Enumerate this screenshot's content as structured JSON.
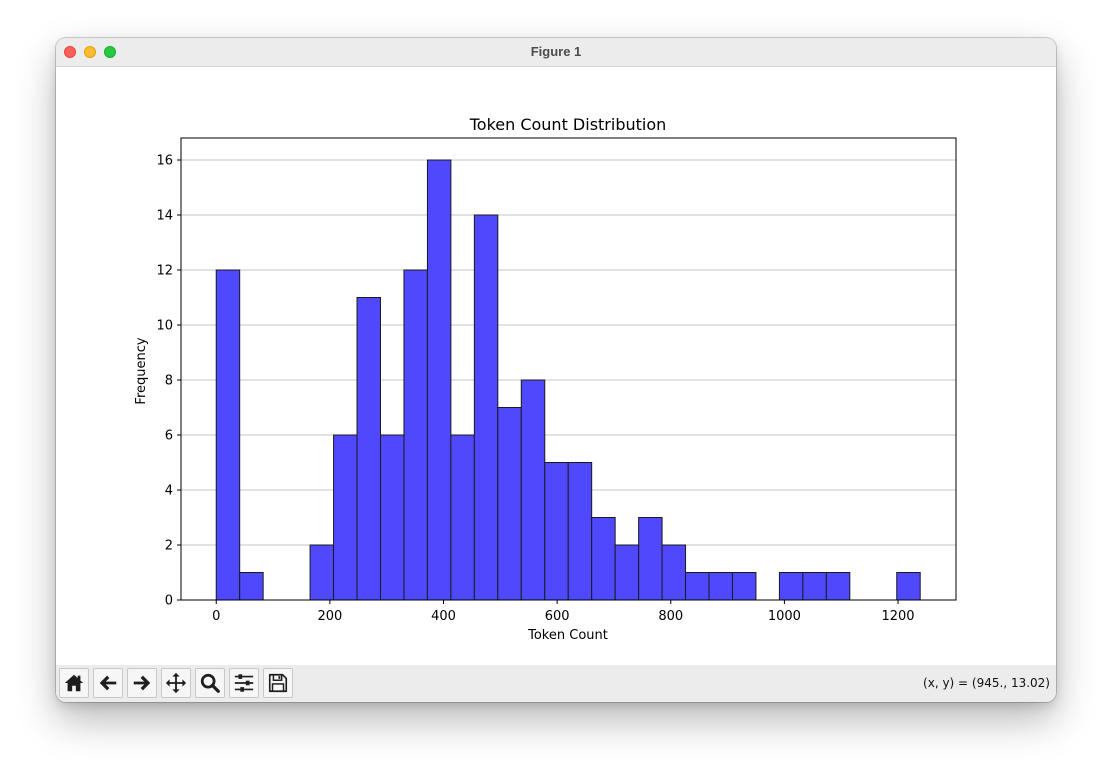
{
  "window": {
    "title": "Figure 1"
  },
  "toolbar": {
    "buttons": [
      {
        "name": "home-icon"
      },
      {
        "name": "back-arrow-icon"
      },
      {
        "name": "forward-arrow-icon"
      },
      {
        "name": "pan-icon"
      },
      {
        "name": "zoom-icon"
      },
      {
        "name": "subplots-icon"
      },
      {
        "name": "save-icon"
      }
    ],
    "coordinates": "(x, y) = (945., 13.02)"
  },
  "chart_data": {
    "type": "bar",
    "title": "Token Count Distribution",
    "xlabel": "Token Count",
    "ylabel": "Frequency",
    "bin_start": 0,
    "bin_width": 41.3,
    "values": [
      12,
      1,
      0,
      0,
      2,
      6,
      11,
      6,
      12,
      16,
      6,
      14,
      7,
      8,
      5,
      5,
      3,
      2,
      3,
      2,
      1,
      1,
      1,
      0,
      1,
      1,
      1,
      0,
      0,
      1
    ],
    "xlim": [
      -62,
      1302
    ],
    "ylim": [
      0,
      16.8
    ],
    "xticks": [
      0,
      200,
      400,
      600,
      800,
      1000,
      1200
    ],
    "yticks": [
      0,
      2,
      4,
      6,
      8,
      10,
      12,
      14,
      16
    ],
    "bar_color": "#5048fd",
    "edge_color": "#1a1a1a",
    "grid": "y"
  }
}
